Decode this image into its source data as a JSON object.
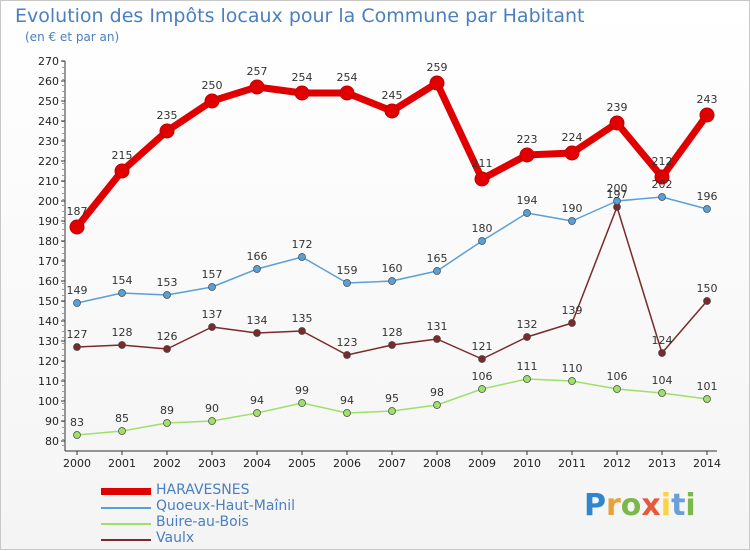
{
  "header": {
    "title": "Evolution des Impôts locaux pour la Commune par Habitant",
    "subtitle": "(en € et par an)"
  },
  "colors": {
    "title": "#4a7fc0",
    "haravesnes": "#e00000",
    "quoeux": "#5aa0d8",
    "buire": "#9ee06a",
    "vaulx": "#7a2a2a"
  },
  "logo": {
    "text": "Proxiti"
  },
  "chart_data": {
    "type": "line",
    "title": "Evolution des Impôts locaux pour la Commune par Habitant",
    "subtitle": "(en € et par an)",
    "x": [
      "2000",
      "2001",
      "2002",
      "2003",
      "2004",
      "2005",
      "2006",
      "2007",
      "2008",
      "2009",
      "2010",
      "2011",
      "2012",
      "2013",
      "2014"
    ],
    "ylim": [
      80,
      270
    ],
    "yticks": [
      80,
      90,
      100,
      110,
      120,
      130,
      140,
      150,
      160,
      170,
      180,
      190,
      200,
      210,
      220,
      230,
      240,
      250,
      260,
      270
    ],
    "grid": false,
    "legend_position": "bottom-left",
    "series": [
      {
        "name": "HARAVESNES",
        "color": "#e00000",
        "values": [
          187,
          215,
          235,
          250,
          257,
          254,
          254,
          245,
          259,
          211,
          223,
          224,
          239,
          212,
          243
        ]
      },
      {
        "name": "Quoeux-Haut-Maînil",
        "color": "#5aa0d8",
        "values": [
          149,
          154,
          153,
          157,
          166,
          172,
          159,
          160,
          165,
          180,
          194,
          190,
          200,
          202,
          196
        ]
      },
      {
        "name": "Buire-au-Bois",
        "color": "#9ee06a",
        "values": [
          83,
          85,
          89,
          90,
          94,
          99,
          94,
          95,
          98,
          106,
          111,
          110,
          106,
          104,
          101
        ]
      },
      {
        "name": "Vaulx",
        "color": "#7a2a2a",
        "values": [
          127,
          128,
          126,
          137,
          134,
          135,
          123,
          128,
          131,
          121,
          132,
          139,
          197,
          124,
          150
        ]
      }
    ]
  }
}
